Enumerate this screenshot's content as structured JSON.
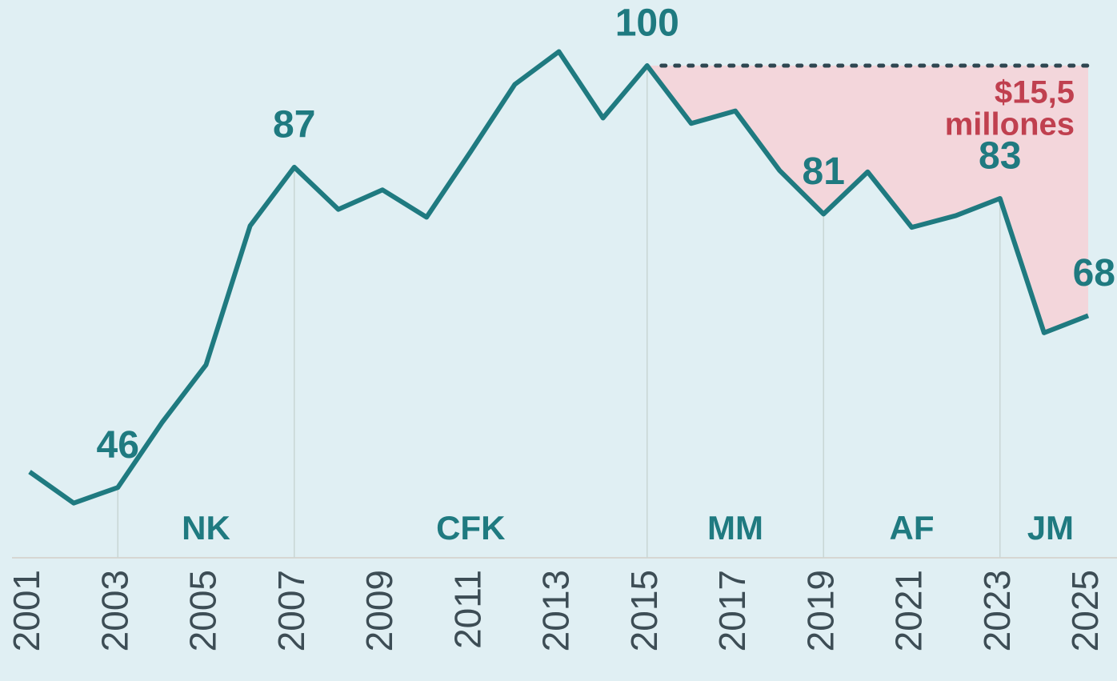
{
  "chart_data": {
    "type": "line",
    "x": [
      2001,
      2002,
      2003,
      2004,
      2005,
      2006,
      2007,
      2008,
      2009,
      2010,
      2011,
      2012,
      2013,
      2014,
      2015,
      2016,
      2017,
      2018,
      2019,
      2020,
      2021,
      2022,
      2023,
      2024,
      2025
    ],
    "values": [
      48,
      44,
      46,
      54.3,
      61.7,
      79.5,
      87,
      81.6,
      84.1,
      80.6,
      89,
      97.6,
      101.8,
      93.3,
      100,
      92.6,
      94.2,
      86.6,
      81,
      86.4,
      79.3,
      80.8,
      83,
      65.8,
      68
    ],
    "color": "#1f7a80",
    "labeled_points": [
      2,
      6,
      14,
      18,
      22,
      24
    ],
    "xlim": [
      2001,
      2025
    ],
    "xticks": [
      2001,
      2003,
      2005,
      2007,
      2009,
      2011,
      2013,
      2015,
      2017,
      2019,
      2021,
      2023,
      2025
    ],
    "ylim": [
      37,
      104
    ],
    "reference": {
      "value": 100,
      "from": 2015,
      "to": 2025,
      "fill": "#f3d6db"
    },
    "annotation": [
      "$15,5",
      "millones"
    ],
    "periods": [
      {
        "label": "NK",
        "start": 2003,
        "end": 2007
      },
      {
        "label": "CFK",
        "start": 2007,
        "end": 2015
      },
      {
        "label": "MM",
        "start": 2015,
        "end": 2019
      },
      {
        "label": "AF",
        "start": 2019,
        "end": 2023
      },
      {
        "label": "JM",
        "start": 2023,
        "end": 2025
      }
    ]
  }
}
